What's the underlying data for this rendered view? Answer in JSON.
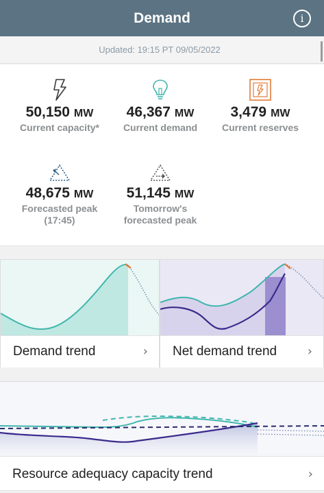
{
  "header": {
    "title": "Demand",
    "info_icon": "info-icon"
  },
  "updated": {
    "text": "Updated: 19:15 PT 09/05/2022"
  },
  "stats": {
    "current_capacity": {
      "value": "50,150",
      "unit": "MW",
      "label": "Current capacity*",
      "icon": "lightning-bolt-icon",
      "color": "#3a3a3a"
    },
    "current_demand": {
      "value": "46,367",
      "unit": "MW",
      "label": "Current demand",
      "icon": "lightbulb-icon",
      "color": "#3fb6ad"
    },
    "current_reserves": {
      "value": "3,479",
      "unit": "MW",
      "label": "Current reserves",
      "icon": "reserves-box-icon",
      "color": "#e07b39"
    },
    "forecasted_peak": {
      "value": "48,675",
      "unit": "MW",
      "label": "Forecasted peak",
      "sublabel": "(17:45)",
      "icon": "forecast-triangle-icon",
      "color": "#2e5f86"
    },
    "tomorrow_peak": {
      "value": "51,145",
      "unit": "MW",
      "label_line1": "Tomorrow's",
      "label_line2": "forecasted peak",
      "icon": "tomorrow-triangle-icon",
      "color": "#555555"
    }
  },
  "cards": {
    "demand_trend": {
      "label": "Demand trend",
      "chevron": "›"
    },
    "net_demand_trend": {
      "label": "Net demand trend",
      "chevron": "›"
    },
    "resource_adequacy": {
      "label": "Resource adequacy capacity trend",
      "chevron": "›"
    }
  },
  "colors": {
    "header_bg": "#5b7382",
    "teal": "#3fb6ad",
    "purple": "#3a2a8c",
    "orange": "#e07b39"
  }
}
